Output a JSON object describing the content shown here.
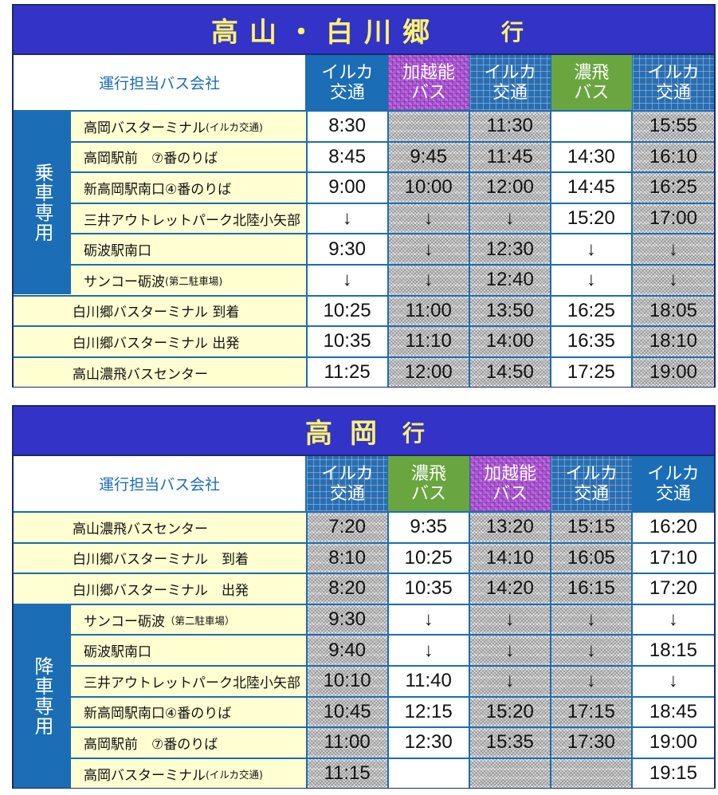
{
  "table1": {
    "title": "高山・白川郷",
    "title_suffix": "行",
    "operator_header": "運行担当バス会社",
    "columns": [
      {
        "label": "イルカ\n交通",
        "style": "op-iruka"
      },
      {
        "label": "加越能\nバス",
        "style": "op-kaetsu"
      },
      {
        "label": "イルカ\n交通",
        "style": "op-iruka-pat"
      },
      {
        "label": "濃飛\nバス",
        "style": "op-nohi"
      },
      {
        "label": "イルカ\n交通",
        "style": "op-iruka-pat"
      }
    ],
    "side_label": "乗車専用",
    "rows": [
      {
        "stop": "高岡バスターミナル",
        "note": "(イルカ交通)",
        "times": [
          "8:30",
          "",
          "11:30",
          "",
          "15:55"
        ]
      },
      {
        "stop": "高岡駅前　⑦番のりば",
        "note": "",
        "times": [
          "8:45",
          "9:45",
          "11:45",
          "14:30",
          "16:10"
        ]
      },
      {
        "stop": "新高岡駅南口④番のりば",
        "note": "",
        "times": [
          "9:00",
          "10:00",
          "12:00",
          "14:45",
          "16:25"
        ]
      },
      {
        "stop": "三井アウトレットパーク北陸小矢部",
        "note": "",
        "times": [
          "↓",
          "↓",
          "↓",
          "15:20",
          "17:00"
        ]
      },
      {
        "stop": "砺波駅南口",
        "note": "",
        "times": [
          "9:30",
          "↓",
          "12:30",
          "↓",
          "↓"
        ]
      },
      {
        "stop": "サンコー砺波",
        "note": "(第二駐車場)",
        "times": [
          "↓",
          "↓",
          "12:40",
          "↓",
          "↓"
        ]
      },
      {
        "stop": "白川郷バスターミナル 到着",
        "note": "",
        "times": [
          "10:25",
          "11:00",
          "13:50",
          "16:25",
          "18:05"
        ]
      },
      {
        "stop": "白川郷バスターミナル 出発",
        "note": "",
        "times": [
          "10:35",
          "11:10",
          "14:00",
          "16:35",
          "18:10"
        ]
      },
      {
        "stop": "高山濃飛バスセンター",
        "note": "",
        "times": [
          "11:25",
          "12:00",
          "14:50",
          "17:25",
          "19:00"
        ]
      }
    ]
  },
  "table2": {
    "title": "高岡",
    "title_suffix": "行",
    "operator_header": "運行担当バス会社",
    "columns": [
      {
        "label": "イルカ\n交通",
        "style": "op-iruka-pat"
      },
      {
        "label": "濃飛\nバス",
        "style": "op-nohi"
      },
      {
        "label": "加越能\nバス",
        "style": "op-kaetsu"
      },
      {
        "label": "イルカ\n交通",
        "style": "op-iruka-pat"
      },
      {
        "label": "イルカ\n交通",
        "style": "op-iruka"
      }
    ],
    "side_label": "降車専用",
    "rows": [
      {
        "stop": "高山濃飛バスセンター",
        "note": "",
        "times": [
          "7:20",
          "9:35",
          "13:20",
          "15:15",
          "16:20"
        ]
      },
      {
        "stop": "白川郷バスターミナル　到着",
        "note": "",
        "times": [
          "8:10",
          "10:25",
          "14:10",
          "16:05",
          "17:10"
        ]
      },
      {
        "stop": "白川郷バスターミナル　出発",
        "note": "",
        "times": [
          "8:20",
          "10:35",
          "14:20",
          "16:15",
          "17:20"
        ]
      },
      {
        "stop": "サンコー砺波",
        "note": "（第二駐車場）",
        "times": [
          "9:30",
          "↓",
          "↓",
          "↓",
          "↓"
        ]
      },
      {
        "stop": "砺波駅南口",
        "note": "",
        "times": [
          "9:40",
          "↓",
          "↓",
          "↓",
          "18:15"
        ]
      },
      {
        "stop": "三井アウトレットパーク北陸小矢部",
        "note": "",
        "times": [
          "10:10",
          "11:40",
          "↓",
          "↓",
          "↓"
        ]
      },
      {
        "stop": "新高岡駅南口④番のりば",
        "note": "",
        "times": [
          "10:45",
          "12:15",
          "15:20",
          "17:15",
          "18:45"
        ]
      },
      {
        "stop": "高岡駅前　⑦番のりば",
        "note": "",
        "times": [
          "11:00",
          "12:30",
          "15:35",
          "17:30",
          "19:00"
        ]
      },
      {
        "stop": "高岡バスターミナル",
        "note": "(イルカ交通)",
        "times": [
          "11:15",
          "",
          "",
          "",
          "19:15"
        ]
      }
    ]
  },
  "colors": {
    "title_bg": "#3333c8",
    "title_text": "#fff36b",
    "iruka_blue": "#1b6db5",
    "kaetsu_purple": "#b04fdc",
    "nohi_green": "#6aa63f",
    "stop_bg": "#ffffd2"
  }
}
